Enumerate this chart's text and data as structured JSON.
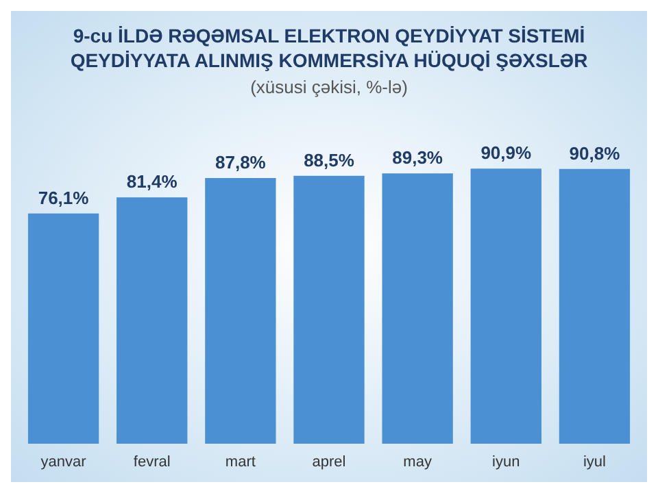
{
  "chart_data": {
    "type": "bar",
    "title": "9-cu İLDƏ RƏQƏMSAL ELEKTRON QEYDİYYAT SİSTEMİ\nQEYDİYYATA ALINMIŞ KOMMERSİYA HÜQUQİ ŞƏXSLƏR",
    "subtitle": "(xüsusi çəkisi, %-lə)",
    "categories": [
      "yanvar",
      "fevral",
      "mart",
      "aprel",
      "may",
      "iyun",
      "iyul"
    ],
    "values": [
      76.1,
      81.4,
      87.8,
      88.5,
      89.3,
      90.9,
      90.8
    ],
    "value_labels": [
      "76,1%",
      "81,4%",
      "87,8%",
      "88,5%",
      "89,3%",
      "90,9%",
      "90,8%"
    ],
    "color": "#4a90d2",
    "tick_labels": "x"
  }
}
